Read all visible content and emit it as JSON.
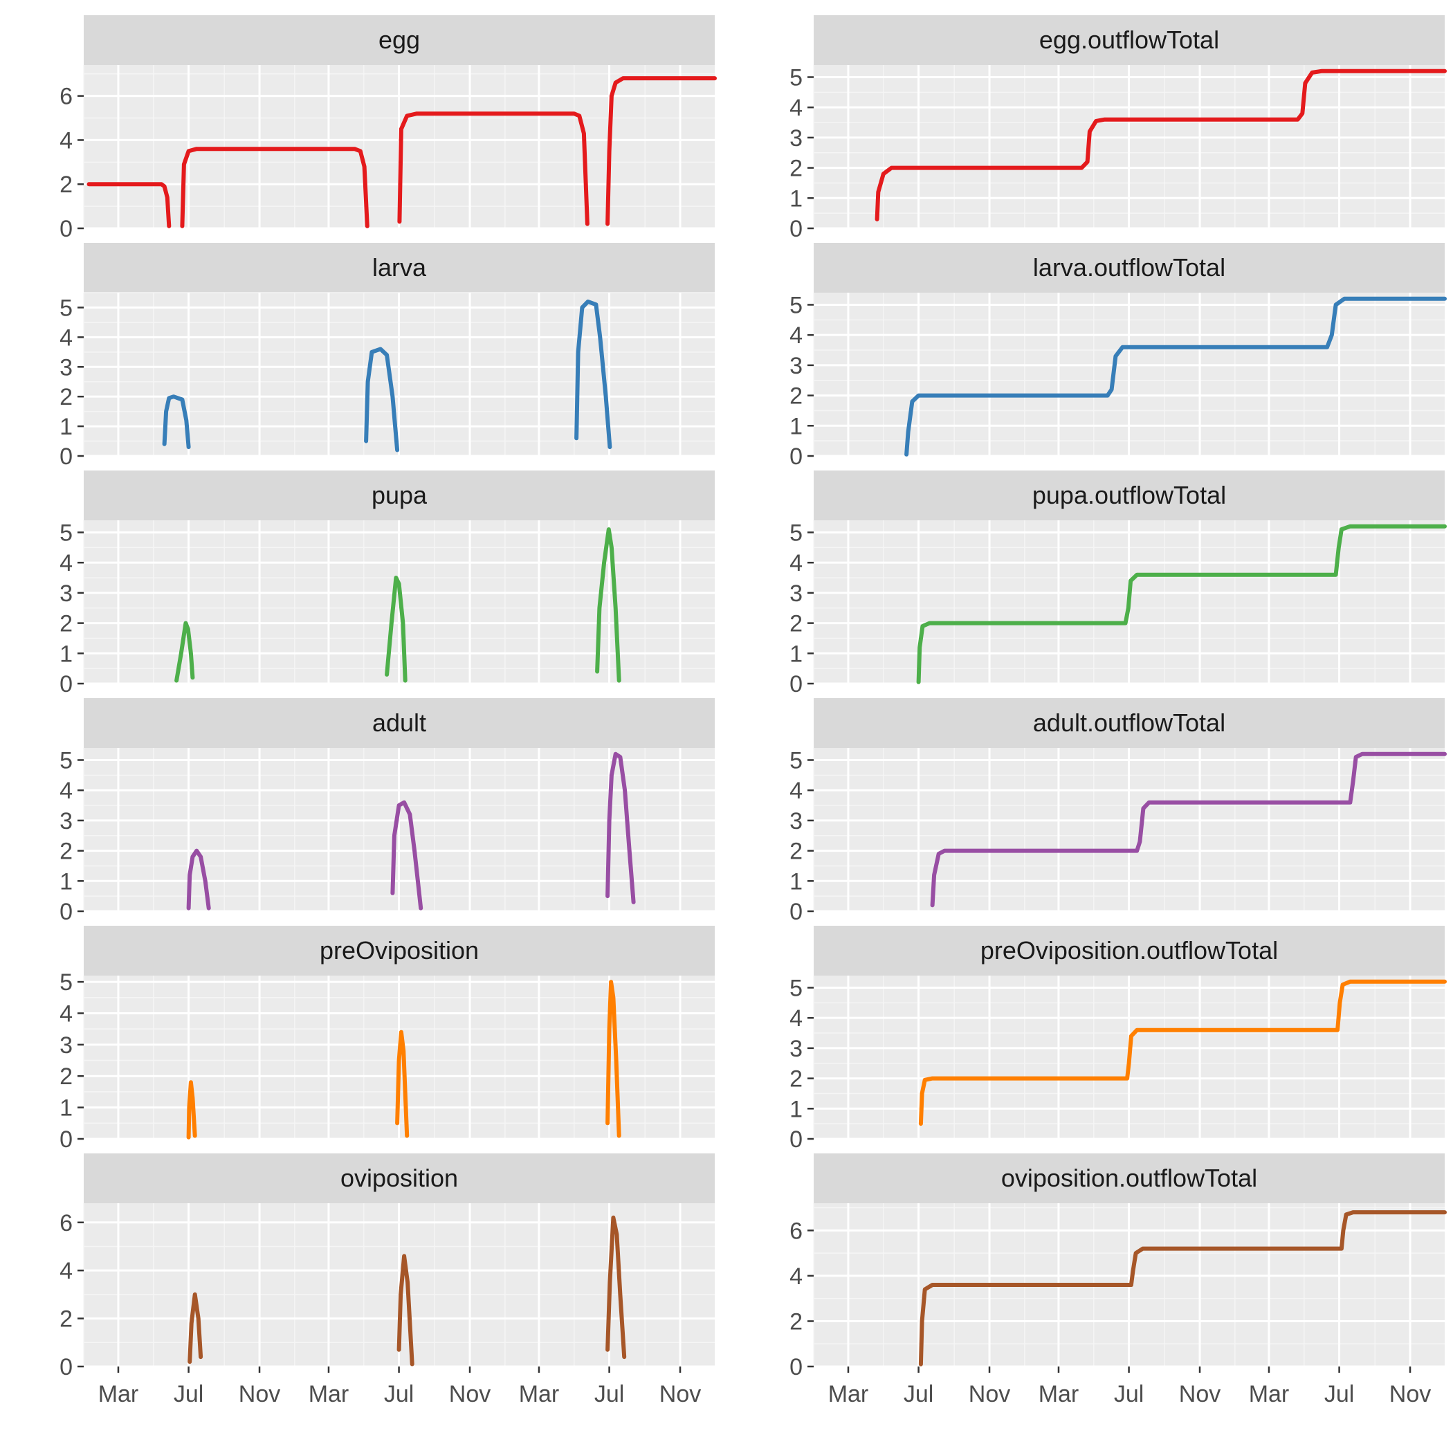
{
  "chart_data": {
    "type": "line",
    "layout": "facet_wrap, 6 rows by 2 columns, free y scales, shared x axis",
    "x_axis": {
      "kind": "date",
      "range": [
        "2000-01-01",
        "2002-12-31"
      ],
      "tick_labels": [
        "Mar",
        "Jul",
        "Nov",
        "Mar",
        "Jul",
        "Nov",
        "Mar",
        "Jul",
        "Nov"
      ]
    },
    "grid": true,
    "legend": "none",
    "panels": [
      {
        "title": "egg",
        "color": "#E41A1C",
        "ylim": [
          0,
          7.4
        ],
        "yticks": [
          0,
          2,
          4,
          6
        ],
        "segments": [
          [
            [
              "2000-01-10",
              2.0
            ],
            [
              "2000-05-15",
              2.0
            ],
            [
              "2000-05-20",
              1.9
            ],
            [
              "2000-05-25",
              1.4
            ],
            [
              "2000-05-28",
              0.1
            ]
          ],
          [
            [
              "2000-06-20",
              0.1
            ],
            [
              "2000-06-23",
              2.9
            ],
            [
              "2000-07-01",
              3.5
            ],
            [
              "2000-07-15",
              3.6
            ],
            [
              "2001-04-15",
              3.6
            ],
            [
              "2001-04-25",
              3.5
            ],
            [
              "2001-05-02",
              2.8
            ],
            [
              "2001-05-07",
              0.1
            ]
          ],
          [
            [
              "2001-07-02",
              0.3
            ],
            [
              "2001-07-05",
              4.5
            ],
            [
              "2001-07-15",
              5.1
            ],
            [
              "2001-08-01",
              5.2
            ],
            [
              "2002-05-01",
              5.2
            ],
            [
              "2002-05-10",
              5.1
            ],
            [
              "2002-05-18",
              4.3
            ],
            [
              "2002-05-24",
              0.2
            ]
          ],
          [
            [
              "2002-06-28",
              0.2
            ],
            [
              "2002-07-01",
              3.5
            ],
            [
              "2002-07-05",
              6.0
            ],
            [
              "2002-07-12",
              6.6
            ],
            [
              "2002-07-25",
              6.8
            ],
            [
              "2002-12-31",
              6.8
            ]
          ]
        ]
      },
      {
        "title": "egg.outflowTotal",
        "color": "#E41A1C",
        "ylim": [
          0,
          5.4
        ],
        "yticks": [
          0,
          1,
          2,
          3,
          4,
          5
        ],
        "segments": [
          [
            [
              "2000-04-20",
              0.3
            ],
            [
              "2000-04-22",
              1.2
            ],
            [
              "2000-05-01",
              1.8
            ],
            [
              "2000-05-15",
              2.0
            ],
            [
              "2001-04-10",
              2.0
            ],
            [
              "2001-04-20",
              2.2
            ],
            [
              "2001-04-24",
              3.2
            ],
            [
              "2001-05-05",
              3.55
            ],
            [
              "2001-05-20",
              3.6
            ],
            [
              "2002-04-20",
              3.6
            ],
            [
              "2002-04-28",
              3.8
            ],
            [
              "2002-05-03",
              4.8
            ],
            [
              "2002-05-15",
              5.15
            ],
            [
              "2002-06-01",
              5.2
            ],
            [
              "2002-12-31",
              5.2
            ]
          ]
        ]
      },
      {
        "title": "larva",
        "color": "#377EB8",
        "ylim": [
          0,
          5.5
        ],
        "yticks": [
          0,
          1,
          2,
          3,
          4,
          5
        ],
        "segments": [
          [
            [
              "2000-05-20",
              0.4
            ],
            [
              "2000-05-23",
              1.5
            ],
            [
              "2000-05-28",
              1.95
            ],
            [
              "2000-06-05",
              2.0
            ],
            [
              "2000-06-20",
              1.9
            ],
            [
              "2000-06-27",
              1.2
            ],
            [
              "2000-07-01",
              0.3
            ]
          ],
          [
            [
              "2001-05-05",
              0.5
            ],
            [
              "2001-05-08",
              2.5
            ],
            [
              "2001-05-15",
              3.5
            ],
            [
              "2001-05-30",
              3.6
            ],
            [
              "2001-06-10",
              3.4
            ],
            [
              "2001-06-20",
              2.0
            ],
            [
              "2001-06-28",
              0.2
            ]
          ],
          [
            [
              "2002-05-05",
              0.6
            ],
            [
              "2002-05-08",
              3.5
            ],
            [
              "2002-05-15",
              5.0
            ],
            [
              "2002-05-25",
              5.2
            ],
            [
              "2002-06-08",
              5.1
            ],
            [
              "2002-06-15",
              4.0
            ],
            [
              "2002-06-25",
              2.0
            ],
            [
              "2002-07-02",
              0.3
            ]
          ]
        ]
      },
      {
        "title": "larva.outflowTotal",
        "color": "#377EB8",
        "ylim": [
          0,
          5.4
        ],
        "yticks": [
          0,
          1,
          2,
          3,
          4,
          5
        ],
        "segments": [
          [
            [
              "2000-06-10",
              0.05
            ],
            [
              "2000-06-13",
              0.8
            ],
            [
              "2000-06-20",
              1.8
            ],
            [
              "2000-07-01",
              2.0
            ],
            [
              "2001-05-25",
              2.0
            ],
            [
              "2001-06-01",
              2.2
            ],
            [
              "2001-06-08",
              3.3
            ],
            [
              "2001-06-20",
              3.6
            ],
            [
              "2002-06-10",
              3.6
            ],
            [
              "2002-06-18",
              4.0
            ],
            [
              "2002-06-25",
              5.0
            ],
            [
              "2002-07-10",
              5.2
            ],
            [
              "2002-12-31",
              5.2
            ]
          ]
        ]
      },
      {
        "title": "pupa",
        "color": "#4DAF4A",
        "ylim": [
          0,
          5.4
        ],
        "yticks": [
          0,
          1,
          2,
          3,
          4,
          5
        ],
        "segments": [
          [
            [
              "2000-06-10",
              0.1
            ],
            [
              "2000-06-18",
              1.0
            ],
            [
              "2000-06-26",
              2.0
            ],
            [
              "2000-06-30",
              1.8
            ],
            [
              "2000-07-05",
              1.0
            ],
            [
              "2000-07-08",
              0.2
            ]
          ],
          [
            [
              "2001-06-10",
              0.3
            ],
            [
              "2001-06-18",
              2.0
            ],
            [
              "2001-06-26",
              3.5
            ],
            [
              "2001-07-01",
              3.3
            ],
            [
              "2001-07-08",
              2.0
            ],
            [
              "2001-07-12",
              0.1
            ]
          ],
          [
            [
              "2002-06-10",
              0.4
            ],
            [
              "2002-06-14",
              2.5
            ],
            [
              "2002-06-22",
              4.0
            ],
            [
              "2002-06-30",
              5.1
            ],
            [
              "2002-07-05",
              4.5
            ],
            [
              "2002-07-12",
              2.5
            ],
            [
              "2002-07-18",
              0.1
            ]
          ]
        ]
      },
      {
        "title": "pupa.outflowTotal",
        "color": "#4DAF4A",
        "ylim": [
          0,
          5.4
        ],
        "yticks": [
          0,
          1,
          2,
          3,
          4,
          5
        ],
        "segments": [
          [
            [
              "2000-07-01",
              0.05
            ],
            [
              "2000-07-03",
              1.2
            ],
            [
              "2000-07-08",
              1.9
            ],
            [
              "2000-07-20",
              2.0
            ],
            [
              "2001-06-25",
              2.0
            ],
            [
              "2001-06-30",
              2.5
            ],
            [
              "2001-07-04",
              3.4
            ],
            [
              "2001-07-15",
              3.6
            ],
            [
              "2002-06-25",
              3.6
            ],
            [
              "2002-06-30",
              4.5
            ],
            [
              "2002-07-05",
              5.1
            ],
            [
              "2002-07-20",
              5.2
            ],
            [
              "2002-12-31",
              5.2
            ]
          ]
        ]
      },
      {
        "title": "adult",
        "color": "#984EA3",
        "ylim": [
          0,
          5.4
        ],
        "yticks": [
          0,
          1,
          2,
          3,
          4,
          5
        ],
        "segments": [
          [
            [
              "2000-07-01",
              0.1
            ],
            [
              "2000-07-03",
              1.2
            ],
            [
              "2000-07-08",
              1.8
            ],
            [
              "2000-07-15",
              2.0
            ],
            [
              "2000-07-22",
              1.8
            ],
            [
              "2000-07-30",
              1.0
            ],
            [
              "2000-08-05",
              0.1
            ]
          ],
          [
            [
              "2001-06-20",
              0.6
            ],
            [
              "2001-06-23",
              2.5
            ],
            [
              "2001-07-01",
              3.5
            ],
            [
              "2001-07-10",
              3.6
            ],
            [
              "2001-07-20",
              3.2
            ],
            [
              "2001-07-28",
              2.0
            ],
            [
              "2001-08-08",
              0.1
            ]
          ],
          [
            [
              "2002-06-28",
              0.5
            ],
            [
              "2002-07-01",
              3.0
            ],
            [
              "2002-07-05",
              4.5
            ],
            [
              "2002-07-12",
              5.2
            ],
            [
              "2002-07-20",
              5.1
            ],
            [
              "2002-07-28",
              4.0
            ],
            [
              "2002-08-05",
              2.0
            ],
            [
              "2002-08-12",
              0.3
            ]
          ]
        ]
      },
      {
        "title": "adult.outflowTotal",
        "color": "#984EA3",
        "ylim": [
          0,
          5.4
        ],
        "yticks": [
          0,
          1,
          2,
          3,
          4,
          5
        ],
        "segments": [
          [
            [
              "2000-07-25",
              0.2
            ],
            [
              "2000-07-28",
              1.2
            ],
            [
              "2000-08-05",
              1.9
            ],
            [
              "2000-08-15",
              2.0
            ],
            [
              "2001-07-15",
              2.0
            ],
            [
              "2001-07-20",
              2.3
            ],
            [
              "2001-07-26",
              3.4
            ],
            [
              "2001-08-05",
              3.6
            ],
            [
              "2002-07-20",
              3.6
            ],
            [
              "2002-07-25",
              4.3
            ],
            [
              "2002-07-30",
              5.1
            ],
            [
              "2002-08-10",
              5.2
            ],
            [
              "2002-12-31",
              5.2
            ]
          ]
        ]
      },
      {
        "title": "preOviposition",
        "color": "#FF7F00",
        "ylim": [
          0,
          5.2
        ],
        "yticks": [
          0,
          1,
          2,
          3,
          4,
          5
        ],
        "segments": [
          [
            [
              "2000-07-01",
              0.05
            ],
            [
              "2000-07-02",
              1.0
            ],
            [
              "2000-07-05",
              1.8
            ],
            [
              "2000-07-08",
              1.3
            ],
            [
              "2000-07-12",
              0.1
            ]
          ],
          [
            [
              "2001-06-28",
              0.5
            ],
            [
              "2001-07-01",
              2.5
            ],
            [
              "2001-07-05",
              3.4
            ],
            [
              "2001-07-09",
              2.8
            ],
            [
              "2001-07-15",
              0.1
            ]
          ],
          [
            [
              "2002-06-28",
              0.5
            ],
            [
              "2002-07-01",
              3.5
            ],
            [
              "2002-07-04",
              5.0
            ],
            [
              "2002-07-08",
              4.5
            ],
            [
              "2002-07-13",
              2.5
            ],
            [
              "2002-07-18",
              0.1
            ]
          ]
        ]
      },
      {
        "title": "preOviposition.outflowTotal",
        "color": "#FF7F00",
        "ylim": [
          0,
          5.4
        ],
        "yticks": [
          0,
          1,
          2,
          3,
          4,
          5
        ],
        "segments": [
          [
            [
              "2000-07-05",
              0.5
            ],
            [
              "2000-07-07",
              1.5
            ],
            [
              "2000-07-12",
              1.95
            ],
            [
              "2000-07-25",
              2.0
            ],
            [
              "2001-06-28",
              2.0
            ],
            [
              "2001-07-01",
              2.5
            ],
            [
              "2001-07-05",
              3.4
            ],
            [
              "2001-07-15",
              3.6
            ],
            [
              "2002-06-28",
              3.6
            ],
            [
              "2002-07-02",
              4.5
            ],
            [
              "2002-07-07",
              5.1
            ],
            [
              "2002-07-20",
              5.2
            ],
            [
              "2002-12-31",
              5.2
            ]
          ]
        ]
      },
      {
        "title": "oviposition",
        "color": "#A65628",
        "ylim": [
          0,
          6.8
        ],
        "yticks": [
          0,
          2,
          4,
          6
        ],
        "segments": [
          [
            [
              "2000-07-03",
              0.2
            ],
            [
              "2000-07-06",
              1.8
            ],
            [
              "2000-07-12",
              3.0
            ],
            [
              "2000-07-18",
              2.0
            ],
            [
              "2000-07-22",
              0.4
            ]
          ],
          [
            [
              "2001-07-01",
              0.7
            ],
            [
              "2001-07-04",
              3.0
            ],
            [
              "2001-07-10",
              4.6
            ],
            [
              "2001-07-16",
              3.5
            ],
            [
              "2001-07-24",
              0.1
            ]
          ],
          [
            [
              "2002-06-28",
              0.7
            ],
            [
              "2002-07-02",
              3.5
            ],
            [
              "2002-07-08",
              6.2
            ],
            [
              "2002-07-14",
              5.5
            ],
            [
              "2002-07-20",
              3.0
            ],
            [
              "2002-07-27",
              0.4
            ]
          ]
        ]
      },
      {
        "title": "oviposition.outflowTotal",
        "color": "#A65628",
        "ylim": [
          0,
          7.2
        ],
        "yticks": [
          0,
          2,
          4,
          6
        ],
        "segments": [
          [
            [
              "2000-07-05",
              0.1
            ],
            [
              "2000-07-07",
              2.0
            ],
            [
              "2000-07-12",
              3.4
            ],
            [
              "2000-07-25",
              3.6
            ],
            [
              "2001-07-05",
              3.6
            ],
            [
              "2001-07-08",
              4.2
            ],
            [
              "2001-07-13",
              5.0
            ],
            [
              "2001-07-25",
              5.2
            ],
            [
              "2002-07-05",
              5.2
            ],
            [
              "2002-07-08",
              6.0
            ],
            [
              "2002-07-13",
              6.7
            ],
            [
              "2002-07-25",
              6.8
            ],
            [
              "2002-12-31",
              6.8
            ]
          ]
        ]
      }
    ]
  }
}
